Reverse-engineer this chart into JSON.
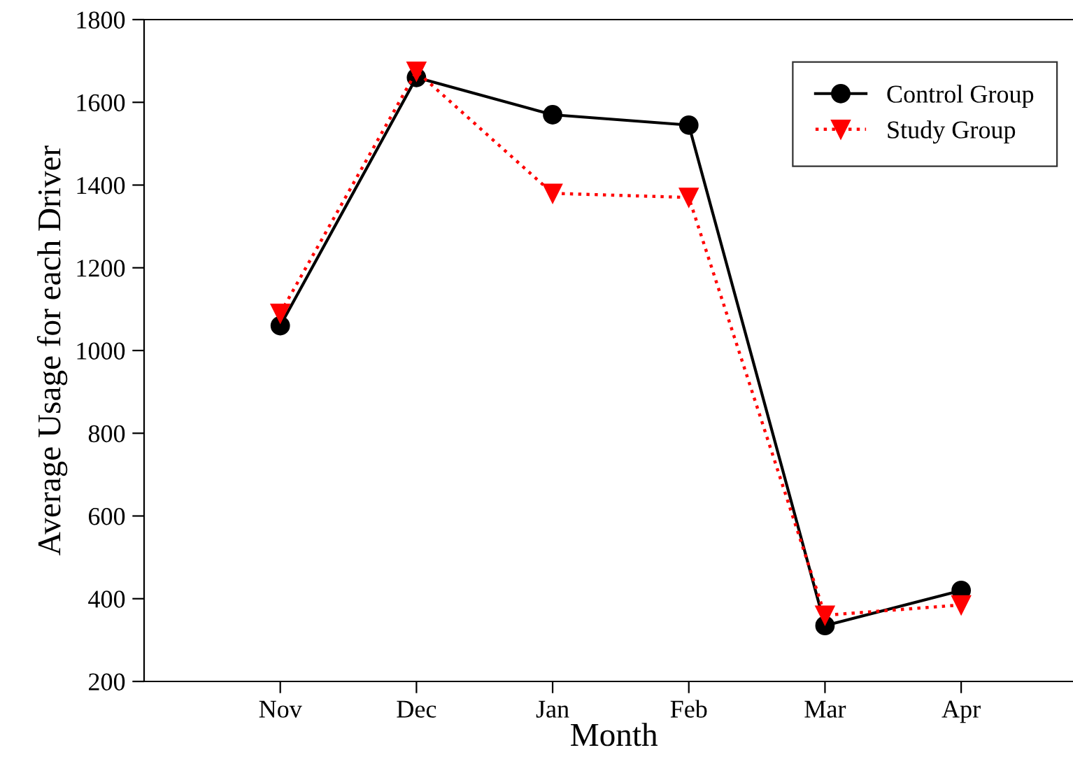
{
  "chart_data": {
    "type": "line",
    "xlabel": "Month",
    "ylabel": "Average Usage for each Driver",
    "categories": [
      "Nov",
      "Dec",
      "Jan",
      "Feb",
      "Mar",
      "Apr"
    ],
    "series": [
      {
        "name": "Control Group",
        "color": "#000000",
        "marker": "circle",
        "line_style": "solid",
        "values": [
          1060,
          1660,
          1570,
          1545,
          335,
          420
        ]
      },
      {
        "name": "Study Group",
        "color": "#ff0000",
        "marker": "triangle",
        "line_style": "dotted",
        "values": [
          1090,
          1675,
          1380,
          1370,
          360,
          385
        ]
      }
    ],
    "ylim": [
      200,
      1800
    ],
    "yticks": [
      200,
      400,
      600,
      800,
      1000,
      1200,
      1400,
      1600,
      1800
    ],
    "grid": false,
    "legend": "top right"
  }
}
